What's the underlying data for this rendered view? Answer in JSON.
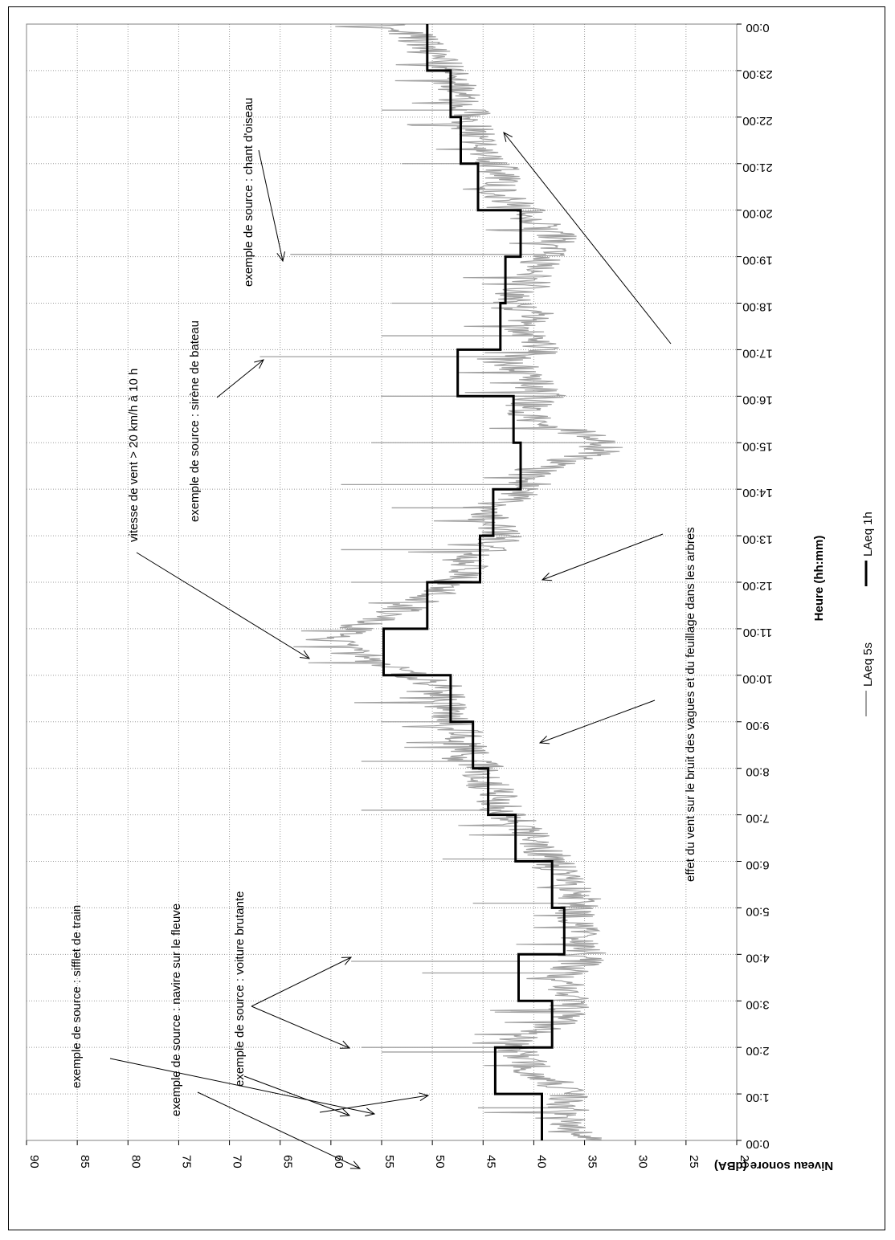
{
  "chart_data": {
    "type": "line",
    "xlabel": "Heure (hh:mm)",
    "ylabel": "Niveau sonore (dBA)",
    "xlim": [
      0,
      24
    ],
    "ylim": [
      20,
      90
    ],
    "x_tick_labels": [
      "0:00",
      "1:00",
      "2:00",
      "3:00",
      "4:00",
      "5:00",
      "6:00",
      "7:00",
      "8:00",
      "9:00",
      "10:00",
      "11:00",
      "12:00",
      "13:00",
      "14:00",
      "15:00",
      "16:00",
      "17:00",
      "18:00",
      "19:00",
      "20:00",
      "21:00",
      "22:00",
      "23:00",
      "0:00"
    ],
    "y_tick_labels": [
      "20",
      "25",
      "30",
      "35",
      "40",
      "45",
      "50",
      "55",
      "60",
      "65",
      "70",
      "75",
      "80",
      "85",
      "90"
    ],
    "grid": true,
    "legend_placement": "bottom",
    "series": [
      {
        "name": "LAeq 5s",
        "color": "#a0a0a0",
        "x": [
          0,
          0.25,
          0.5,
          0.75,
          1,
          1.25,
          1.5,
          1.75,
          2,
          2.25,
          2.5,
          2.75,
          3,
          3.25,
          3.5,
          3.75,
          4,
          4.25,
          4.5,
          4.75,
          5,
          5.25,
          5.5,
          5.75,
          6,
          6.25,
          6.5,
          6.75,
          7,
          7.25,
          7.5,
          7.75,
          8,
          8.25,
          8.5,
          8.75,
          9,
          9.25,
          9.5,
          9.75,
          10,
          10.25,
          10.5,
          10.75,
          11,
          11.25,
          11.5,
          11.75,
          12,
          12.25,
          12.5,
          12.75,
          13,
          13.25,
          13.5,
          13.75,
          14,
          14.25,
          14.5,
          14.75,
          15,
          15.25,
          15.5,
          15.75,
          16,
          16.25,
          16.5,
          16.75,
          17,
          17.25,
          17.5,
          17.75,
          18,
          18.25,
          18.5,
          18.75,
          19,
          19.25,
          19.5,
          19.75,
          20,
          20.25,
          20.5,
          20.75,
          21,
          21.25,
          21.5,
          21.75,
          22,
          22.25,
          22.5,
          22.75,
          23,
          23.25,
          23.5,
          23.75,
          24
        ],
        "y": [
          35,
          36,
          37,
          36.5,
          37,
          38,
          40,
          41,
          42,
          41,
          38,
          37,
          36,
          37,
          37,
          36,
          34.5,
          35,
          35.5,
          36,
          36,
          35.5,
          36.5,
          37,
          38,
          39,
          40,
          41,
          43,
          43.5,
          44,
          45,
          45,
          46,
          47,
          47,
          48,
          48.5,
          49,
          49,
          52,
          55,
          57,
          59,
          58,
          55,
          52,
          50,
          48,
          47,
          46,
          44,
          43,
          44,
          45,
          43,
          40,
          41,
          39,
          34,
          33,
          36,
          40,
          41,
          39,
          40,
          41,
          42,
          39,
          40,
          41,
          40,
          42,
          41,
          40,
          40,
          39,
          38,
          38,
          40,
          41,
          43,
          44,
          43,
          44,
          45,
          45,
          46,
          46,
          47,
          47.5,
          48,
          48.5,
          49.5,
          50,
          52,
          53
        ],
        "spikes": [
          {
            "x": 0.7,
            "y": 45.5
          },
          {
            "x": 1.9,
            "y": 55
          },
          {
            "x": 2.0,
            "y": 57
          },
          {
            "x": 3.6,
            "y": 51
          },
          {
            "x": 3.85,
            "y": 58
          },
          {
            "x": 5.1,
            "y": 46
          },
          {
            "x": 6.05,
            "y": 49
          },
          {
            "x": 7.1,
            "y": 57
          },
          {
            "x": 8.15,
            "y": 57
          },
          {
            "x": 9.0,
            "y": 55
          },
          {
            "x": 12.0,
            "y": 58
          },
          {
            "x": 12.7,
            "y": 59
          },
          {
            "x": 13.6,
            "y": 54
          },
          {
            "x": 14.1,
            "y": 59
          },
          {
            "x": 15.0,
            "y": 56
          },
          {
            "x": 16.0,
            "y": 55
          },
          {
            "x": 16.85,
            "y": 67
          },
          {
            "x": 17.3,
            "y": 55
          },
          {
            "x": 18.0,
            "y": 54
          },
          {
            "x": 19.05,
            "y": 64
          },
          {
            "x": 21.0,
            "y": 53
          },
          {
            "x": 22.15,
            "y": 55
          }
        ]
      },
      {
        "name": "LAeq 1h",
        "color": "#000000",
        "hourly_values": [
          39.2,
          43.8,
          38.2,
          41.5,
          37.0,
          38.2,
          41.8,
          44.5,
          46.0,
          48.2,
          54.8,
          50.5,
          45.3,
          44.0,
          41.3,
          42.0,
          47.5,
          43.3,
          42.8,
          41.3,
          45.5,
          47.2,
          48.2,
          50.5
        ]
      }
    ],
    "annotations": [
      "exemple de source : sifflet de train",
      "exemple de source : navire sur le fleuve",
      "exemple de source : voiture brutante",
      "vitesse de vent > 20 km/h à 10 h",
      "exemple de source : sirène de bateau",
      "exemple de source : chant d'oiseau",
      "effet du vent sur le bruit des vagues et du feuillage dans les arbres"
    ]
  }
}
